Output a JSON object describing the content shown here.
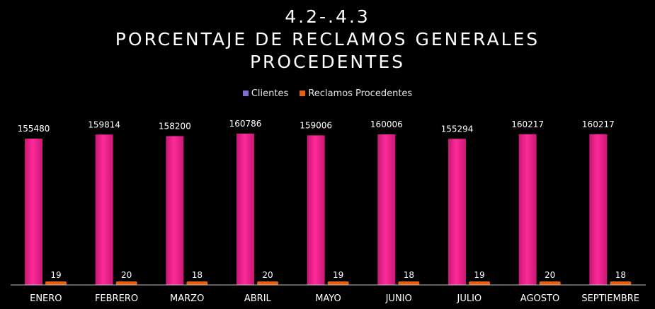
{
  "chart_data": {
    "type": "bar",
    "title_lines": [
      "4.2-.4.3",
      "PORCENTAJE DE RECLAMOS GENERALES",
      "PROCEDENTES"
    ],
    "categories": [
      "ENERO",
      "FEBRERO",
      "MARZO",
      "ABRIL",
      "MAYO",
      "JUNIO",
      "JULIO",
      "AGOSTO",
      "SEPTIEMBRE"
    ],
    "series": [
      {
        "name": "Clientes",
        "values": [
          155480,
          159814,
          158200,
          160786,
          159006,
          160006,
          155294,
          160217,
          160217
        ],
        "color": "#f01f8c",
        "legend_color": "#7b6fd0"
      },
      {
        "name": "Reclamos Procedentes",
        "values": [
          19,
          20,
          18,
          20,
          19,
          18,
          19,
          20,
          18
        ],
        "color": "#e8600e",
        "legend_color": "#e8600e"
      }
    ],
    "ylim": [
      0,
      160786
    ],
    "legend": "top",
    "grid": false
  }
}
